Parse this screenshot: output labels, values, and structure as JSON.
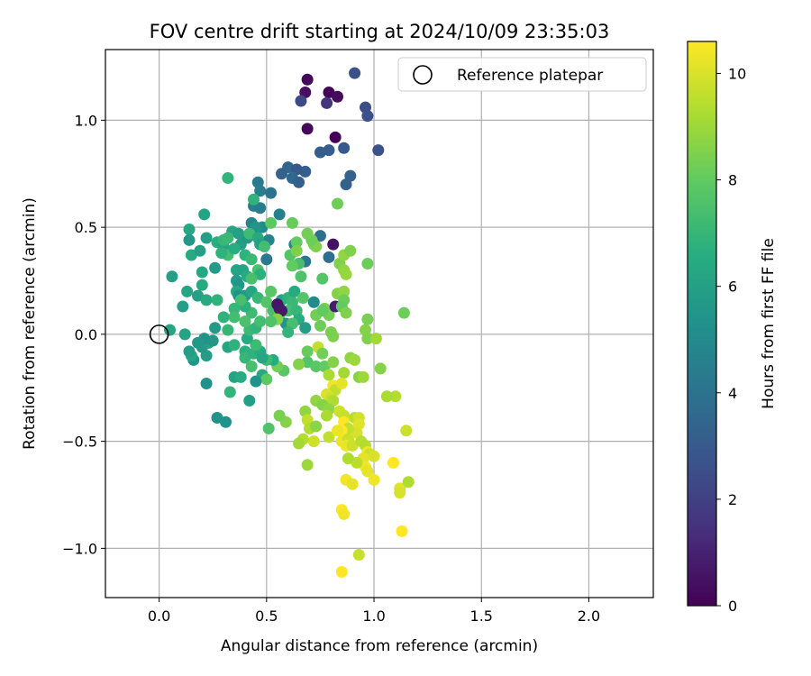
{
  "chart_data": {
    "type": "scatter",
    "title": "FOV centre drift starting at 2024/10/09 23:35:03",
    "xlabel": "Angular distance from reference (arcmin)",
    "ylabel": "Rotation from reference (arcmin)",
    "xlim": [
      -0.25,
      2.3
    ],
    "ylim": [
      -1.23,
      1.33
    ],
    "xticks": [
      0.0,
      0.5,
      1.0,
      1.5,
      2.0
    ],
    "xtick_labels": [
      "0.0",
      "0.5",
      "1.0",
      "1.5",
      "2.0"
    ],
    "yticks": [
      -1.0,
      -0.5,
      0.0,
      0.5,
      1.0
    ],
    "ytick_labels": [
      "−1.0",
      "−0.5",
      "0.0",
      "0.5",
      "1.0"
    ],
    "grid": true,
    "legend": {
      "placement": "top-right",
      "entries": [
        "Reference platepar"
      ]
    },
    "reference_point": {
      "x": 0.0,
      "y": 0.0,
      "label": "Reference platepar"
    },
    "colorbar": {
      "label": "Hours from first FF file",
      "colormap": "viridis",
      "range": [
        0,
        10.6
      ],
      "ticks": [
        0,
        2,
        4,
        6,
        8,
        10
      ],
      "tick_labels": [
        "0",
        "2",
        "4",
        "6",
        "8",
        "10"
      ]
    },
    "points": [
      [
        0.69,
        1.19,
        0.2
      ],
      [
        0.68,
        1.13,
        0.4
      ],
      [
        0.79,
        1.13,
        0.1
      ],
      [
        0.83,
        1.11,
        0.3
      ],
      [
        0.78,
        1.08,
        1.6
      ],
      [
        0.66,
        1.09,
        2.3
      ],
      [
        0.91,
        1.22,
        2.6
      ],
      [
        0.96,
        1.06,
        2.5
      ],
      [
        0.97,
        1.02,
        2.6
      ],
      [
        0.69,
        0.96,
        0.2
      ],
      [
        0.82,
        0.92,
        0.1
      ],
      [
        1.02,
        0.86,
        2.7
      ],
      [
        0.86,
        0.87,
        3.0
      ],
      [
        0.75,
        0.85,
        3.1
      ],
      [
        0.79,
        0.86,
        3.1
      ],
      [
        0.68,
        0.76,
        3.2
      ],
      [
        0.6,
        0.78,
        3.5
      ],
      [
        0.57,
        0.75,
        3.3
      ],
      [
        0.64,
        0.77,
        3.0
      ],
      [
        0.62,
        0.73,
        3.6
      ],
      [
        0.65,
        0.71,
        3.2
      ],
      [
        0.89,
        0.74,
        3.3
      ],
      [
        0.87,
        0.7,
        3.3
      ],
      [
        0.46,
        0.71,
        4.3
      ],
      [
        0.47,
        0.67,
        4.5
      ],
      [
        0.52,
        0.66,
        4.0
      ],
      [
        0.44,
        0.6,
        4.5
      ],
      [
        0.47,
        0.59,
        4.4
      ],
      [
        0.56,
        0.56,
        4.6
      ],
      [
        0.43,
        0.52,
        4.8
      ],
      [
        0.48,
        0.5,
        5.0
      ],
      [
        0.51,
        0.44,
        4.8
      ],
      [
        0.63,
        0.42,
        4.7
      ],
      [
        0.75,
        0.46,
        3.9
      ],
      [
        0.81,
        0.42,
        0.5
      ],
      [
        0.79,
        0.36,
        3.8
      ],
      [
        0.68,
        0.34,
        4.2
      ],
      [
        0.5,
        0.35,
        4.3
      ],
      [
        0.45,
        0.5,
        5.5
      ],
      [
        0.44,
        0.63,
        6.8
      ],
      [
        0.38,
        0.42,
        5.8
      ],
      [
        0.34,
        0.48,
        6.2
      ],
      [
        0.32,
        0.73,
        6.9
      ],
      [
        0.21,
        0.56,
        6.1
      ],
      [
        0.14,
        0.49,
        6.3
      ],
      [
        0.14,
        0.44,
        5.6
      ],
      [
        0.15,
        0.37,
        6.4
      ],
      [
        0.19,
        0.39,
        6.0
      ],
      [
        0.22,
        0.45,
        5.9
      ],
      [
        0.27,
        0.43,
        6.6
      ],
      [
        0.3,
        0.41,
        6.2
      ],
      [
        0.3,
        0.44,
        7.0
      ],
      [
        0.32,
        0.37,
        7.3
      ],
      [
        0.35,
        0.4,
        6.6
      ],
      [
        0.37,
        0.47,
        6.0
      ],
      [
        0.41,
        0.45,
        5.7
      ],
      [
        0.42,
        0.47,
        7.2
      ],
      [
        0.46,
        0.45,
        6.4
      ],
      [
        0.47,
        0.42,
        6.0
      ],
      [
        0.49,
        0.41,
        7.3
      ],
      [
        0.4,
        0.37,
        6.8
      ],
      [
        0.43,
        0.35,
        7.1
      ],
      [
        0.46,
        0.3,
        7.5
      ],
      [
        0.47,
        0.28,
        6.7
      ],
      [
        0.36,
        0.3,
        6.2
      ],
      [
        0.39,
        0.3,
        6.1
      ],
      [
        0.41,
        0.27,
        6.5
      ],
      [
        0.43,
        0.26,
        7.4
      ],
      [
        0.36,
        0.25,
        5.8
      ],
      [
        0.37,
        0.23,
        5.5
      ],
      [
        0.36,
        0.2,
        6.4
      ],
      [
        0.37,
        0.18,
        5.4
      ],
      [
        0.4,
        0.18,
        5.7
      ],
      [
        0.43,
        0.2,
        6.3
      ],
      [
        0.46,
        0.17,
        7.0
      ],
      [
        0.52,
        0.2,
        7.8
      ],
      [
        0.5,
        0.15,
        7.7
      ],
      [
        0.53,
        0.11,
        7.4
      ],
      [
        0.56,
        0.09,
        7.8
      ],
      [
        0.57,
        0.16,
        6.1
      ],
      [
        0.6,
        0.17,
        6.8
      ],
      [
        0.62,
        0.15,
        7.1
      ],
      [
        0.63,
        0.2,
        6.4
      ],
      [
        0.67,
        0.17,
        7.7
      ],
      [
        0.6,
        0.11,
        7.3
      ],
      [
        0.56,
        0.12,
        0.6
      ],
      [
        0.55,
        0.14,
        0.6
      ],
      [
        0.57,
        0.11,
        0.7
      ],
      [
        0.59,
        0.05,
        5.5
      ],
      [
        0.55,
        0.07,
        8.6
      ],
      [
        0.64,
        0.11,
        7.0
      ],
      [
        0.65,
        0.07,
        6.6
      ],
      [
        0.62,
        0.05,
        7.4
      ],
      [
        0.68,
        0.03,
        5.8
      ],
      [
        0.65,
        0.33,
        7.4
      ],
      [
        0.61,
        0.37,
        7.7
      ],
      [
        0.62,
        0.32,
        8.0
      ],
      [
        0.66,
        0.27,
        7.6
      ],
      [
        0.64,
        0.43,
        8.0
      ],
      [
        0.69,
        0.47,
        8.0
      ],
      [
        0.72,
        0.42,
        8.3
      ],
      [
        0.73,
        0.41,
        8.5
      ],
      [
        0.71,
        0.44,
        8.2
      ],
      [
        0.64,
        0.39,
        8.5
      ],
      [
        0.76,
        0.26,
        7.7
      ],
      [
        0.72,
        0.15,
        5.0
      ],
      [
        0.77,
        0.12,
        8.4
      ],
      [
        0.73,
        0.09,
        8.3
      ],
      [
        0.75,
        0.04,
        8.2
      ],
      [
        0.79,
        0.09,
        8.3
      ],
      [
        0.76,
        0.11,
        8.0
      ],
      [
        0.82,
        0.13,
        0.8
      ],
      [
        0.83,
        0.19,
        8.6
      ],
      [
        0.86,
        0.2,
        8.8
      ],
      [
        0.86,
        0.16,
        8.2
      ],
      [
        0.85,
        0.13,
        8.0
      ],
      [
        0.87,
        0.1,
        8.5
      ],
      [
        0.84,
        0.33,
        8.5
      ],
      [
        0.86,
        0.3,
        8.8
      ],
      [
        0.86,
        0.37,
        8.8
      ],
      [
        0.89,
        0.39,
        8.5
      ],
      [
        0.87,
        0.28,
        8.9
      ],
      [
        0.83,
        0.61,
        8.2
      ],
      [
        0.97,
        0.33,
        8.2
      ],
      [
        0.97,
        0.07,
        8.4
      ],
      [
        0.96,
        0.02,
        8.6
      ],
      [
        0.97,
        -0.02,
        8.5
      ],
      [
        1.01,
        -0.02,
        9.1
      ],
      [
        0.81,
        -0.01,
        8.5
      ],
      [
        0.8,
        0.01,
        8.4
      ],
      [
        0.74,
        -0.06,
        9.6
      ],
      [
        0.76,
        -0.09,
        8.3
      ],
      [
        0.69,
        -0.08,
        8.1
      ],
      [
        0.69,
        -0.13,
        7.7
      ],
      [
        0.73,
        -0.15,
        7.8
      ],
      [
        0.77,
        -0.15,
        8.0
      ],
      [
        0.81,
        -0.13,
        8.6
      ],
      [
        0.89,
        -0.11,
        8.8
      ],
      [
        0.91,
        -0.12,
        9.0
      ],
      [
        0.86,
        -0.18,
        9.1
      ],
      [
        0.93,
        -0.2,
        8.6
      ],
      [
        0.79,
        -0.19,
        9.2
      ],
      [
        0.81,
        -0.24,
        10.4
      ],
      [
        0.82,
        -0.26,
        9.6
      ],
      [
        0.78,
        -0.28,
        10.0
      ],
      [
        0.8,
        -0.3,
        9.7
      ],
      [
        0.81,
        -0.31,
        9.3
      ],
      [
        0.85,
        -0.23,
        10.2
      ],
      [
        0.73,
        -0.31,
        8.8
      ],
      [
        0.76,
        -0.33,
        8.6
      ],
      [
        0.79,
        -0.35,
        8.8
      ],
      [
        0.68,
        -0.36,
        8.8
      ],
      [
        0.78,
        -0.38,
        9.2
      ],
      [
        0.84,
        -0.36,
        9.8
      ],
      [
        0.86,
        -0.38,
        9.7
      ],
      [
        0.86,
        -0.41,
        10.6
      ],
      [
        0.91,
        -0.39,
        9.5
      ],
      [
        0.93,
        -0.39,
        9.9
      ],
      [
        0.93,
        -0.42,
        10.1
      ],
      [
        0.92,
        -0.46,
        10.0
      ],
      [
        0.88,
        -0.44,
        9.6
      ],
      [
        0.85,
        -0.45,
        10.6
      ],
      [
        0.69,
        -0.4,
        9.6
      ],
      [
        0.7,
        -0.44,
        9.3
      ],
      [
        0.73,
        -0.43,
        8.7
      ],
      [
        0.72,
        -0.5,
        9.8
      ],
      [
        0.67,
        -0.49,
        9.4
      ],
      [
        0.65,
        -0.51,
        9.1
      ],
      [
        0.79,
        -0.48,
        9.6
      ],
      [
        0.83,
        -0.45,
        10.3
      ],
      [
        0.85,
        -0.5,
        10.3
      ],
      [
        0.88,
        -0.49,
        9.7
      ],
      [
        0.87,
        -0.52,
        10.3
      ],
      [
        0.9,
        -0.52,
        9.8
      ],
      [
        0.94,
        -0.5,
        9.5
      ],
      [
        0.96,
        -0.52,
        9.4
      ],
      [
        0.97,
        -0.55,
        10.4
      ],
      [
        0.98,
        -0.56,
        9.8
      ],
      [
        0.95,
        -0.58,
        10.2
      ],
      [
        0.96,
        -0.62,
        10.4
      ],
      [
        0.97,
        -0.64,
        10.2
      ],
      [
        0.92,
        -0.6,
        9.5
      ],
      [
        0.88,
        -0.58,
        9.3
      ],
      [
        0.87,
        -0.68,
        10.4
      ],
      [
        0.9,
        -0.7,
        10.2
      ],
      [
        1.0,
        -0.68,
        10.4
      ],
      [
        1.0,
        -0.57,
        10.0
      ],
      [
        1.09,
        -0.6,
        10.6
      ],
      [
        1.12,
        -0.72,
        10.1
      ],
      [
        1.16,
        -0.69,
        9.3
      ],
      [
        1.12,
        -0.74,
        10.0
      ],
      [
        1.15,
        -0.45,
        9.8
      ],
      [
        1.1,
        -0.29,
        9.4
      ],
      [
        1.06,
        -0.29,
        9.2
      ],
      [
        1.03,
        -0.16,
        8.6
      ],
      [
        0.95,
        -0.2,
        9.0
      ],
      [
        1.14,
        0.1,
        8.2
      ],
      [
        0.85,
        -0.82,
        10.6
      ],
      [
        0.86,
        -0.84,
        10.4
      ],
      [
        1.13,
        -0.92,
        10.6
      ],
      [
        0.93,
        -1.03,
        9.7
      ],
      [
        0.85,
        -1.11,
        10.6
      ],
      [
        0.69,
        -0.61,
        9.0
      ],
      [
        0.59,
        -0.41,
        8.6
      ],
      [
        0.51,
        -0.44,
        7.6
      ],
      [
        0.56,
        -0.38,
        8.4
      ],
      [
        0.65,
        -0.14,
        8.6
      ],
      [
        0.58,
        -0.17,
        7.8
      ],
      [
        0.55,
        -0.15,
        8.3
      ],
      [
        0.53,
        -0.12,
        6.5
      ],
      [
        0.5,
        -0.12,
        7.2
      ],
      [
        0.48,
        -0.19,
        6.4
      ],
      [
        0.5,
        -0.21,
        7.9
      ],
      [
        0.45,
        -0.22,
        5.4
      ],
      [
        0.42,
        -0.31,
        5.9
      ],
      [
        0.35,
        -0.2,
        6.1
      ],
      [
        0.38,
        -0.2,
        6.5
      ],
      [
        0.33,
        -0.27,
        6.9
      ],
      [
        0.31,
        -0.41,
        5.4
      ],
      [
        0.27,
        -0.39,
        5.4
      ],
      [
        0.22,
        -0.23,
        5.3
      ],
      [
        0.22,
        -0.1,
        5.8
      ],
      [
        0.16,
        -0.12,
        5.5
      ],
      [
        0.15,
        -0.1,
        6.1
      ],
      [
        0.14,
        -0.08,
        5.8
      ],
      [
        0.2,
        -0.06,
        5.6
      ],
      [
        0.23,
        -0.04,
        6.0
      ],
      [
        0.25,
        -0.03,
        5.6
      ],
      [
        0.21,
        -0.02,
        5.4
      ],
      [
        0.18,
        -0.04,
        5.6
      ],
      [
        0.12,
        0.0,
        6.1
      ],
      [
        0.05,
        0.02,
        6.2
      ],
      [
        0.11,
        0.13,
        5.9
      ],
      [
        0.13,
        0.2,
        6.2
      ],
      [
        0.18,
        0.18,
        6.0
      ],
      [
        0.2,
        0.23,
        6.4
      ],
      [
        0.22,
        0.16,
        6.4
      ],
      [
        0.27,
        0.16,
        6.8
      ],
      [
        0.26,
        0.31,
        5.7
      ],
      [
        0.26,
        0.03,
        5.7
      ],
      [
        0.32,
        -0.06,
        6.2
      ],
      [
        0.35,
        -0.05,
        6.8
      ],
      [
        0.4,
        -0.08,
        6.7
      ],
      [
        0.4,
        -0.11,
        7.0
      ],
      [
        0.44,
        -0.09,
        6.8
      ],
      [
        0.47,
        -0.08,
        6.5
      ],
      [
        0.45,
        -0.05,
        7.2
      ],
      [
        0.41,
        -0.02,
        6.4
      ],
      [
        0.42,
        0.02,
        7.1
      ],
      [
        0.45,
        0.03,
        6.9
      ],
      [
        0.47,
        0.06,
        7.3
      ],
      [
        0.43,
        0.1,
        7.2
      ],
      [
        0.4,
        0.13,
        6.7
      ],
      [
        0.38,
        0.16,
        7.4
      ],
      [
        0.35,
        0.12,
        7.0
      ],
      [
        0.35,
        0.08,
        7.3
      ],
      [
        0.4,
        0.06,
        7.5
      ],
      [
        0.32,
        0.02,
        7.0
      ],
      [
        0.3,
        0.08,
        6.8
      ],
      [
        0.52,
        0.06,
        7.6
      ],
      [
        0.48,
        -0.11,
        6.3
      ],
      [
        0.43,
        -0.15,
        7.4
      ],
      [
        0.6,
        0.01,
        6.9
      ],
      [
        0.06,
        0.27,
        6.0
      ],
      [
        0.2,
        0.29,
        6.3
      ],
      [
        0.29,
        0.38,
        6.8
      ],
      [
        0.32,
        0.45,
        7.1
      ],
      [
        0.52,
        0.52,
        7.9
      ],
      [
        0.62,
        0.52,
        8.1
      ],
      [
        0.69,
        0.47,
        8.3
      ]
    ]
  }
}
